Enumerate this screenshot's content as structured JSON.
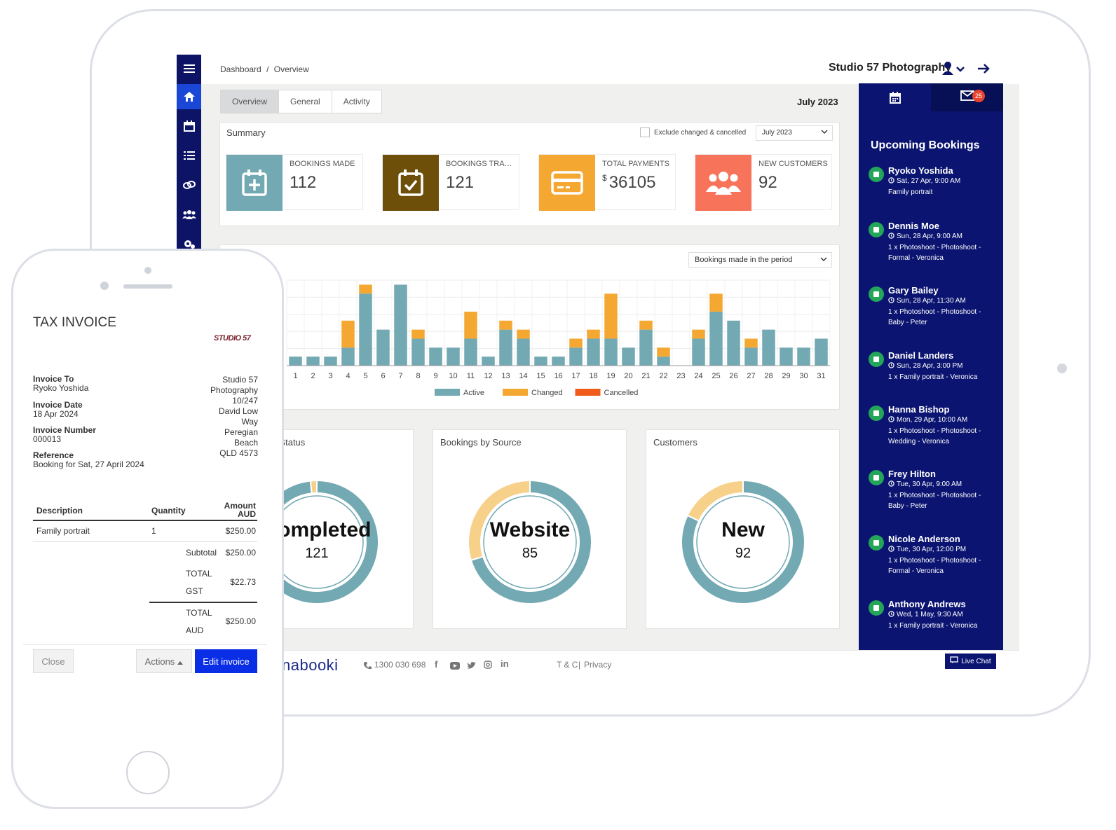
{
  "breadcrumb": {
    "home": "Dashboard",
    "sep": "/",
    "current": "Overview"
  },
  "business_name": "Studio 57 Photography",
  "tabs": [
    "Overview",
    "General",
    "Activity"
  ],
  "current_month": "July 2023",
  "summary": {
    "title": "Summary",
    "exclude_label": "Exclude changed & cancelled",
    "period_select": "July 2023",
    "kpis": [
      {
        "label": "BOOKINGS MADE",
        "value": "112",
        "color": "#73a9b3",
        "icon": "calendar-plus-icon"
      },
      {
        "label": "BOOKINGS TRAN...",
        "value": "121",
        "color": "#6e4f0a",
        "icon": "calendar-check-icon"
      },
      {
        "label": "TOTAL PAYMENTS",
        "currency": "$",
        "value": "36105",
        "color": "#f4a832",
        "icon": "credit-card-icon"
      },
      {
        "label": "NEW CUSTOMERS",
        "value": "92",
        "color": "#f7735a",
        "icon": "users-icon"
      }
    ]
  },
  "chart_select": "Bookings made in the period",
  "chart_data": {
    "type": "bar",
    "stacked": true,
    "categories": [
      "1",
      "2",
      "3",
      "4",
      "5",
      "6",
      "7",
      "8",
      "9",
      "10",
      "11",
      "12",
      "13",
      "14",
      "15",
      "16",
      "17",
      "18",
      "19",
      "20",
      "21",
      "22",
      "23",
      "24",
      "25",
      "26",
      "27",
      "28",
      "29",
      "30",
      "31"
    ],
    "series": [
      {
        "name": "Active",
        "color": "#73a9b3",
        "values": [
          1,
          1,
          1,
          2,
          8,
          4,
          9,
          3,
          2,
          2,
          3,
          1,
          4,
          3,
          1,
          1,
          2,
          3,
          3,
          2,
          4,
          1,
          0,
          3,
          6,
          5,
          2,
          4,
          2,
          2,
          3
        ]
      },
      {
        "name": "Changed",
        "color": "#f4a832",
        "values": [
          0,
          0,
          0,
          3,
          1,
          0,
          0,
          1,
          0,
          0,
          3,
          0,
          1,
          1,
          0,
          0,
          1,
          1,
          5,
          0,
          1,
          1,
          0,
          1,
          2,
          0,
          1,
          0,
          0,
          0,
          0
        ]
      },
      {
        "name": "Cancelled",
        "color": "#f05a1a",
        "values": [
          0,
          0,
          0,
          0,
          0,
          0,
          0,
          0,
          0,
          0,
          0,
          0,
          0,
          0,
          0,
          0,
          0,
          0,
          0,
          0,
          0,
          0,
          0,
          0,
          0,
          0,
          0,
          0,
          0,
          0,
          0
        ]
      }
    ],
    "legend": "bottom",
    "grid": true
  },
  "donuts": [
    {
      "title": "Bookings by Status",
      "center_label": "Completed",
      "center_value": "121",
      "segments": [
        {
          "value": 119,
          "color": "#73a9b3"
        },
        {
          "value": 2,
          "color": "#f7d08a"
        }
      ]
    },
    {
      "title": "Bookings by Source",
      "center_label": "Website",
      "center_value": "85",
      "segments": [
        {
          "value": 85,
          "color": "#73a9b3"
        },
        {
          "value": 36,
          "color": "#f7d08a"
        }
      ]
    },
    {
      "title": "Customers",
      "center_label": "New",
      "center_value": "92",
      "segments": [
        {
          "value": 92,
          "color": "#73a9b3"
        },
        {
          "value": 20,
          "color": "#f7d08a"
        }
      ]
    }
  ],
  "upcoming": {
    "badge": "25",
    "title": "Upcoming Bookings",
    "items": [
      {
        "name": "Ryoko Yoshida",
        "time": "Sat, 27 Apr, 9:00 AM",
        "desc": "Family portrait"
      },
      {
        "name": "Dennis Moe",
        "time": "Sun, 28 Apr, 9:00 AM",
        "desc": "1 x Photoshoot - Photoshoot - Formal - Veronica"
      },
      {
        "name": "Gary Bailey",
        "time": "Sun, 28 Apr, 11:30 AM",
        "desc": "1 x Photoshoot - Photoshoot - Baby - Peter"
      },
      {
        "name": "Daniel Landers",
        "time": "Sun, 28 Apr, 3:00 PM",
        "desc": "1 x Family portrait - Veronica"
      },
      {
        "name": "Hanna Bishop",
        "time": "Mon, 29 Apr, 10:00 AM",
        "desc": "1 x Photoshoot - Photoshoot - Wedding - Veronica"
      },
      {
        "name": "Frey Hilton",
        "time": "Tue, 30 Apr, 9:00 AM",
        "desc": "1 x Photoshoot - Photoshoot - Baby - Peter"
      },
      {
        "name": "Nicole Anderson",
        "time": "Tue, 30 Apr, 12:00 PM",
        "desc": "1 x Photoshoot - Photoshoot - Formal - Veronica"
      },
      {
        "name": "Anthony Andrews",
        "time": "Wed, 1 May, 9:30 AM",
        "desc": "1 x Family portrait - Veronica"
      }
    ]
  },
  "footer": {
    "brand": "nabooki",
    "phone": "1300 030 698",
    "terms": "T & C",
    "sep": "|",
    "privacy": "Privacy",
    "live_chat": "Live Chat"
  },
  "invoice": {
    "title": "TAX INVOICE",
    "logo_text": "STUDIO 57",
    "invoice_to_label": "Invoice To",
    "invoice_to": "Ryoko Yoshida",
    "date_label": "Invoice Date",
    "date": "18 Apr 2024",
    "number_label": "Invoice Number",
    "number": "000013",
    "reference_label": "Reference",
    "reference": "Booking for Sat, 27 April 2024",
    "business_address": [
      "Studio 57",
      "Photography",
      "10/247",
      "David Low",
      "Way",
      "Peregian",
      "Beach",
      "QLD 4573"
    ],
    "col_description": "Description",
    "col_quantity": "Quantity",
    "col_amount": "Amount AUD",
    "line_desc": "Family portrait",
    "line_qty": "1",
    "line_amount": "$250.00",
    "subtotal_label": "Subtotal",
    "subtotal": "$250.00",
    "gst_label_1": "TOTAL",
    "gst_label_2": "GST",
    "gst": "$22.73",
    "total_label_1": "TOTAL",
    "total_label_2": "AUD",
    "total": "$250.00",
    "close": "Close",
    "actions": "Actions",
    "edit": "Edit invoice"
  }
}
